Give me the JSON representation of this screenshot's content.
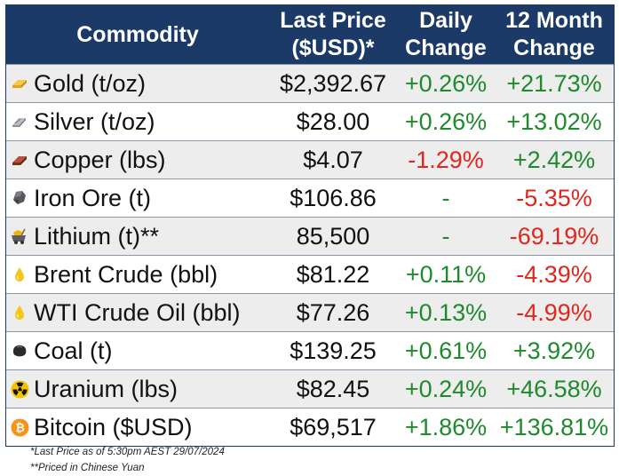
{
  "header": {
    "commodity": "Commodity",
    "last_price_line1": "Last Price",
    "last_price_line2": "($USD)*",
    "daily_line1": "Daily",
    "daily_line2": "Change",
    "yearly_line1": "12 Month",
    "yearly_line2": "Change"
  },
  "rows": [
    {
      "name": "Gold (t/oz)",
      "price": "$2,392.67",
      "daily": "+0.26%",
      "yearly": "+21.73%",
      "icon": "gold-bar-icon"
    },
    {
      "name": "Silver (t/oz)",
      "price": "$28.00",
      "daily": "+0.26%",
      "yearly": "+13.02%",
      "icon": "silver-bar-icon"
    },
    {
      "name": "Copper (lbs)",
      "price": "$4.07",
      "daily": "-1.29%",
      "yearly": "+2.42%",
      "icon": "copper-bar-icon"
    },
    {
      "name": "Iron Ore (t)",
      "price": "$106.86",
      "daily": "-",
      "yearly": "-5.35%",
      "icon": "iron-ore-icon"
    },
    {
      "name": "Lithium (t)**",
      "price": "85,500",
      "daily": "-",
      "yearly": "-69.19%",
      "icon": "mining-cart-icon"
    },
    {
      "name": "Brent Crude (bbl)",
      "price": "$81.22",
      "daily": "+0.11%",
      "yearly": "-4.39%",
      "icon": "oil-drop-icon"
    },
    {
      "name": "WTI Crude Oil (bbl)",
      "price": "$77.26",
      "daily": "+0.13%",
      "yearly": "-4.99%",
      "icon": "oil-drop-icon"
    },
    {
      "name": "Coal (t)",
      "price": "$139.25",
      "daily": "+0.61%",
      "yearly": "+3.92%",
      "icon": "coal-icon"
    },
    {
      "name": "Uranium (lbs)",
      "price": "$82.45",
      "daily": "+0.24%",
      "yearly": "+46.58%",
      "icon": "radiation-icon"
    },
    {
      "name": "Bitcoin ($USD)",
      "price": "$69,517",
      "daily": "+1.86%",
      "yearly": "+136.81%",
      "icon": "bitcoin-icon"
    }
  ],
  "footnotes": {
    "note1": "*Last Price as of 5:30pm AEST 29/07/2024",
    "note2": "**Priced in Chinese Yuan"
  },
  "colors": {
    "header_bg": "#1b3a68",
    "positive": "#1e8a2c",
    "negative": "#e0261d"
  }
}
